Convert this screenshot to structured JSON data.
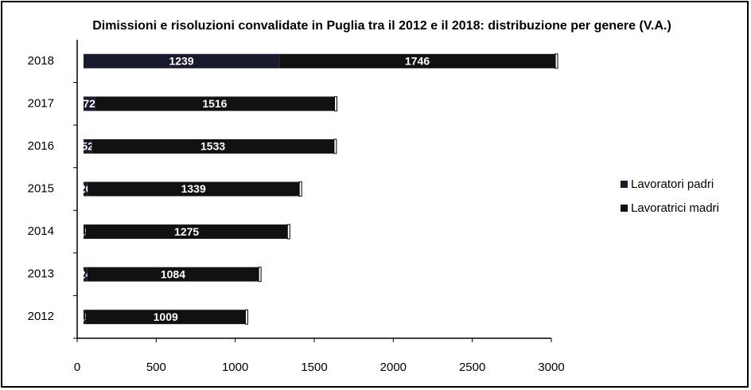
{
  "chart_data": {
    "type": "bar",
    "orientation": "horizontal",
    "stacked": true,
    "title": "Dimissioni e risoluzioni convalidate in Puglia tra il 2012 e il 2018: distribuzione per genere (V.A.)",
    "categories": [
      "2012",
      "2013",
      "2014",
      "2015",
      "2016",
      "2017",
      "2018"
    ],
    "series": [
      {
        "name": "Lavoratori padri",
        "color": "#1a1a2e",
        "values": [
          15,
          24,
          15,
          26,
          52,
          72,
          1239
        ]
      },
      {
        "name": "Lavoratrici madri",
        "color": "#111111",
        "values": [
          1009,
          1084,
          1275,
          1339,
          1533,
          1516,
          1746
        ]
      }
    ],
    "xlim": [
      0,
      3000
    ],
    "xticks": [
      0,
      500,
      1000,
      1500,
      2000,
      2500,
      3000
    ],
    "legend": "right"
  }
}
